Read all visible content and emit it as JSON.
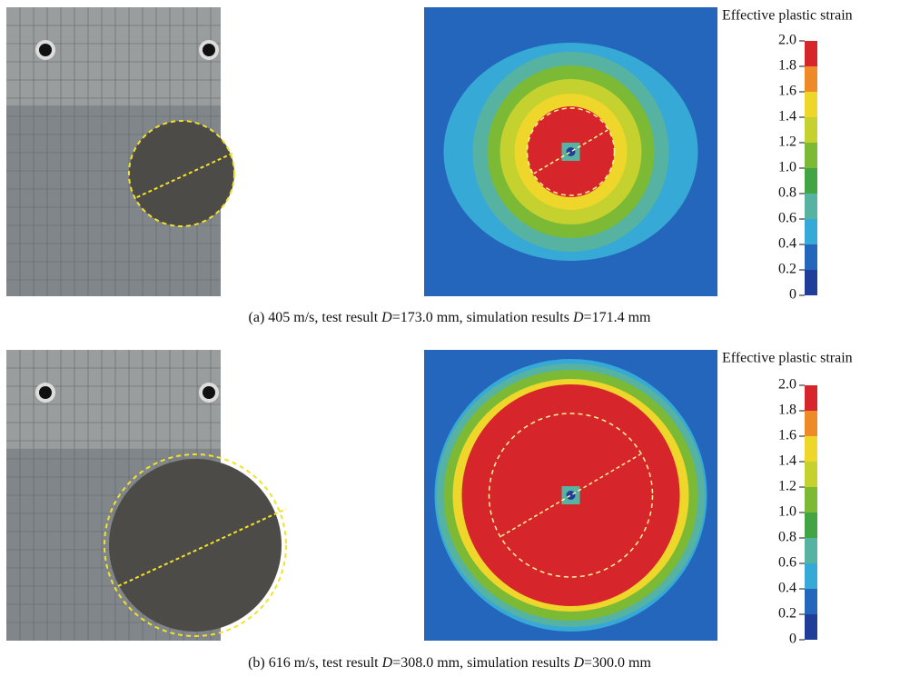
{
  "panels": [
    {
      "caption": [
        "(a) 405 m/s, test result ",
        "D",
        "=173.0 mm, simulation results ",
        "D",
        "=171.4 mm"
      ],
      "colorbar": {
        "title": "Effective plastic strain",
        "range": [
          0,
          2
        ],
        "ticks": [
          0,
          {
            "value": 0.2,
            "label": "0.2"
          },
          {
            "value": 0.4,
            "label": "0.4"
          },
          {
            "value": 0.6,
            "label": "0.6"
          },
          {
            "value": 0.8,
            "label": "0.8"
          },
          {
            "value": 1,
            "label": "1.0"
          },
          {
            "value": 1.2,
            "label": "1.2"
          },
          {
            "value": 1.4,
            "label": "1.4"
          },
          {
            "value": 1.6,
            "label": "1.6"
          },
          {
            "value": 1.8,
            "label": "1.8"
          },
          {
            "value": 2,
            "label": "2.0"
          }
        ],
        "colors": [
          "#1f3d99",
          "#2566bd",
          "#36a9d6",
          "#56b3a2",
          "#42a443",
          "#7cba35",
          "#c4d12f",
          "#eed62a",
          "#ee8a28",
          "#d7262b"
        ]
      }
    },
    {
      "caption": [
        "(b) 616 m/s, test result ",
        "D",
        "=308.0 mm, simulation results ",
        "D",
        "=300.0 mm"
      ],
      "colorbar": {
        "title": "Effective plastic strain",
        "range": [
          0,
          2
        ],
        "ticks": [
          0,
          {
            "value": 0.2,
            "label": "0.2"
          },
          {
            "value": 0.4,
            "label": "0.4"
          },
          {
            "value": 0.6,
            "label": "0.6"
          },
          {
            "value": 0.8,
            "label": "0.8"
          },
          {
            "value": 1,
            "label": "1.0"
          },
          {
            "value": 1.2,
            "label": "1.2"
          },
          {
            "value": 1.4,
            "label": "1.4"
          },
          {
            "value": 1.6,
            "label": "1.6"
          },
          {
            "value": 1.8,
            "label": "1.8"
          },
          {
            "value": 2,
            "label": "2.0"
          }
        ],
        "colors": [
          "#1f3d99",
          "#2566bd",
          "#36a9d6",
          "#56b3a2",
          "#42a443",
          "#7cba35",
          "#c4d12f",
          "#eed62a",
          "#ee8a28",
          "#d7262b"
        ]
      }
    }
  ]
}
